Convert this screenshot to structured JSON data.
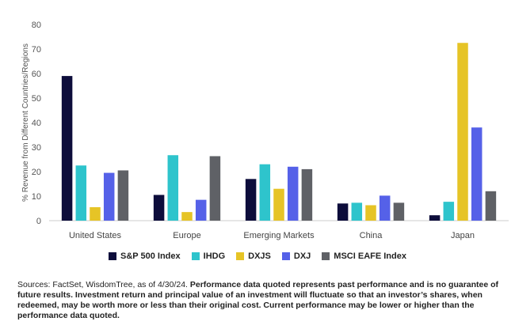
{
  "chart_data": {
    "type": "bar",
    "title": "",
    "xlabel": "",
    "ylabel": "% Revenue from Different Countries/Regions",
    "ylim": [
      0,
      80
    ],
    "yticks": [
      0,
      10,
      20,
      30,
      40,
      50,
      60,
      70,
      80
    ],
    "grid": false,
    "legend_position": "bottom",
    "categories": [
      "United States",
      "Europe",
      "Emerging Markets",
      "China",
      "Japan"
    ],
    "series": [
      {
        "name": "S&P 500 Index",
        "color": "#0d0d3b",
        "values": [
          59,
          10.5,
          17,
          7,
          2.2
        ]
      },
      {
        "name": "IHDG",
        "color": "#2ec4cc",
        "values": [
          22.5,
          26.7,
          23,
          7.3,
          7.7
        ]
      },
      {
        "name": "DXJS",
        "color": "#e6c426",
        "values": [
          5.5,
          3.5,
          13,
          6.3,
          72.5
        ]
      },
      {
        "name": "DXJ",
        "color": "#5561e8",
        "values": [
          19.5,
          8.5,
          22,
          10.2,
          38
        ]
      },
      {
        "name": "MSCI EAFE Index",
        "color": "#5f6166",
        "values": [
          20.5,
          26.3,
          21,
          7.3,
          12
        ]
      }
    ]
  },
  "footnote": {
    "plain": "Sources: FactSet, WisdomTree, as of 4/30/24. ",
    "bold": "Performance data quoted represents past performance and is no guarantee of future results. Investment return and principal value of an investment will fluctuate so that an investor’s shares, when redeemed, may be worth more or less than their original cost. Current performance may be lower or higher than the performance data quoted."
  }
}
